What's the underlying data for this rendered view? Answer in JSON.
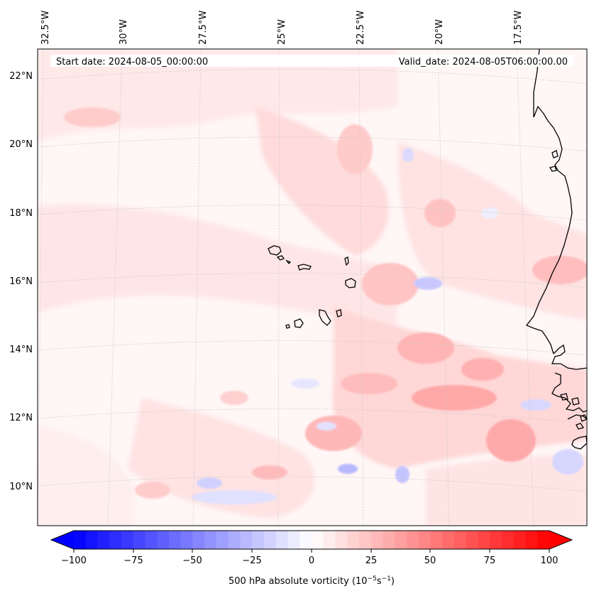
{
  "map": {
    "start_date_text": "Start date: 2024-08-05_00:00:00",
    "valid_date_text": "Valid_date: 2024-08-05T06:00:00.00",
    "lon_labels": [
      "32.5°W",
      "30°W",
      "27.5°W",
      "25°W",
      "22.5°W",
      "20°W",
      "17.5°W"
    ],
    "lat_labels": [
      "22°N",
      "20°N",
      "18°N",
      "16°N",
      "14°N",
      "12°N",
      "10°N"
    ],
    "region": "Cape Verde Islands and West African coast"
  },
  "colorbar": {
    "ticks": [
      "−100",
      "−75",
      "−50",
      "−25",
      "0",
      "25",
      "50",
      "75",
      "100"
    ],
    "label_main": "500 hPa absolute vorticity (10",
    "label_exp1": "−5",
    "label_mid": "s",
    "label_exp2": "−1",
    "label_end": ")",
    "min": -100,
    "max": 100,
    "colormap": "bwr",
    "colors": {
      "min": "#0000ff",
      "mid": "#ffffff",
      "max": "#ff0000"
    }
  }
}
